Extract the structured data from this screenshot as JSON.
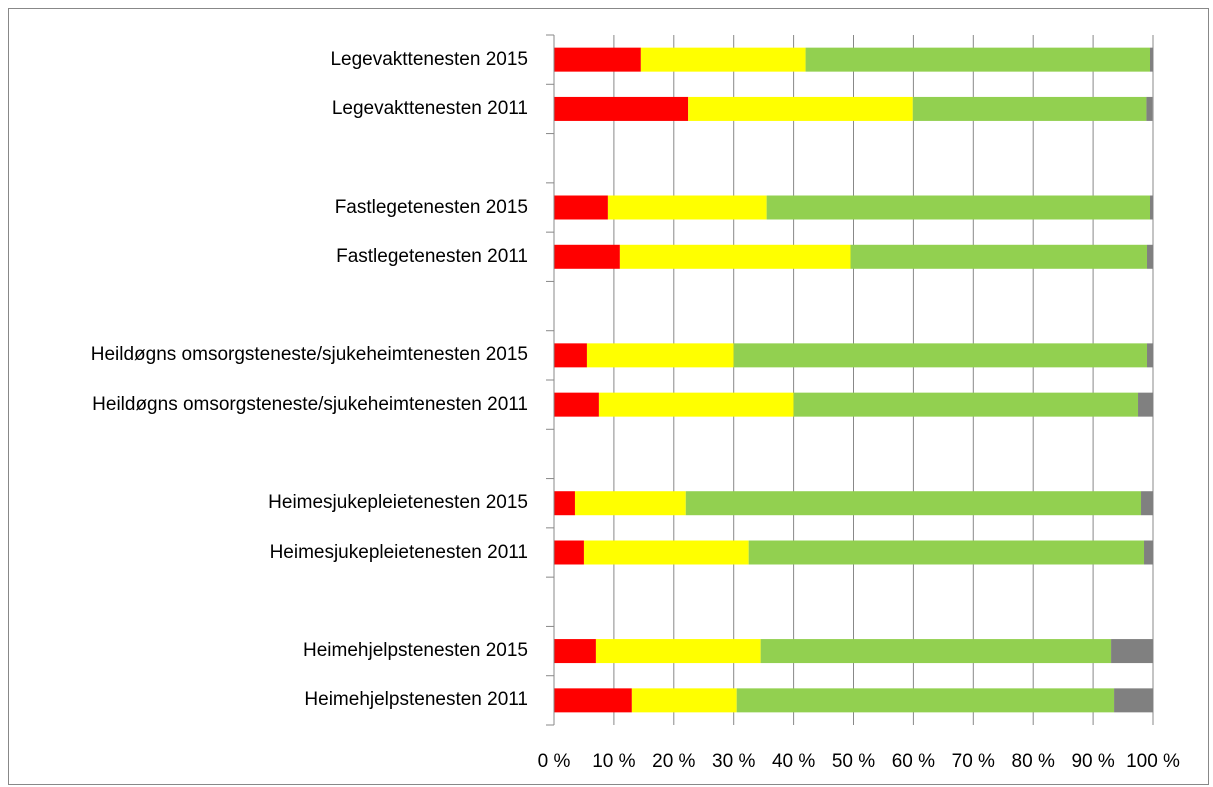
{
  "chart_data": {
    "type": "stacked_bar_horizontal",
    "categories": [
      "Legevakttenesten 2015",
      "Legevakttenesten 2011",
      null,
      "Fastlegetenesten 2015",
      "Fastlegetenesten 2011",
      null,
      "Heildøgns omsorgsteneste/sjukeheimtenesten 2015",
      "Heildøgns omsorgsteneste/sjukeheimtenesten 2011",
      null,
      "Heimesjukepleietenesten 2015",
      "Heimesjukepleietenesten 2011",
      null,
      "Heimehjelpstenesten 2015",
      "Heimehjelpstenesten 2011"
    ],
    "series": [
      {
        "color": "#ff0000",
        "values": [
          14.5,
          22.4,
          null,
          9,
          11,
          null,
          5.5,
          7.5,
          null,
          3.5,
          5,
          null,
          7,
          13
        ]
      },
      {
        "color": "#ffff00",
        "values": [
          27.5,
          37.5,
          null,
          26.5,
          38.5,
          null,
          24.5,
          32.5,
          null,
          18.5,
          27.5,
          null,
          27.5,
          17.5
        ]
      },
      {
        "color": "#92d050",
        "values": [
          57.5,
          39,
          null,
          64,
          49.5,
          null,
          69,
          57.5,
          null,
          76,
          66,
          null,
          58.5,
          63
        ]
      },
      {
        "color": "#808080",
        "values": [
          0.5,
          1,
          null,
          0.5,
          1,
          null,
          1,
          2.5,
          null,
          2,
          1.5,
          null,
          7,
          6.5
        ]
      }
    ],
    "xlim": [
      0,
      100
    ],
    "xticks": [
      {
        "value": 0,
        "label": "0 %"
      },
      {
        "value": 10,
        "label": "10 %"
      },
      {
        "value": 20,
        "label": "20 %"
      },
      {
        "value": 30,
        "label": "30 %"
      },
      {
        "value": 40,
        "label": "40 %"
      },
      {
        "value": 50,
        "label": "50 %"
      },
      {
        "value": 60,
        "label": "60 %"
      },
      {
        "value": 70,
        "label": "70 %"
      },
      {
        "value": 80,
        "label": "80 %"
      },
      {
        "value": 90,
        "label": "90 %"
      },
      {
        "value": 100,
        "label": "100 %"
      }
    ],
    "grid": true
  }
}
